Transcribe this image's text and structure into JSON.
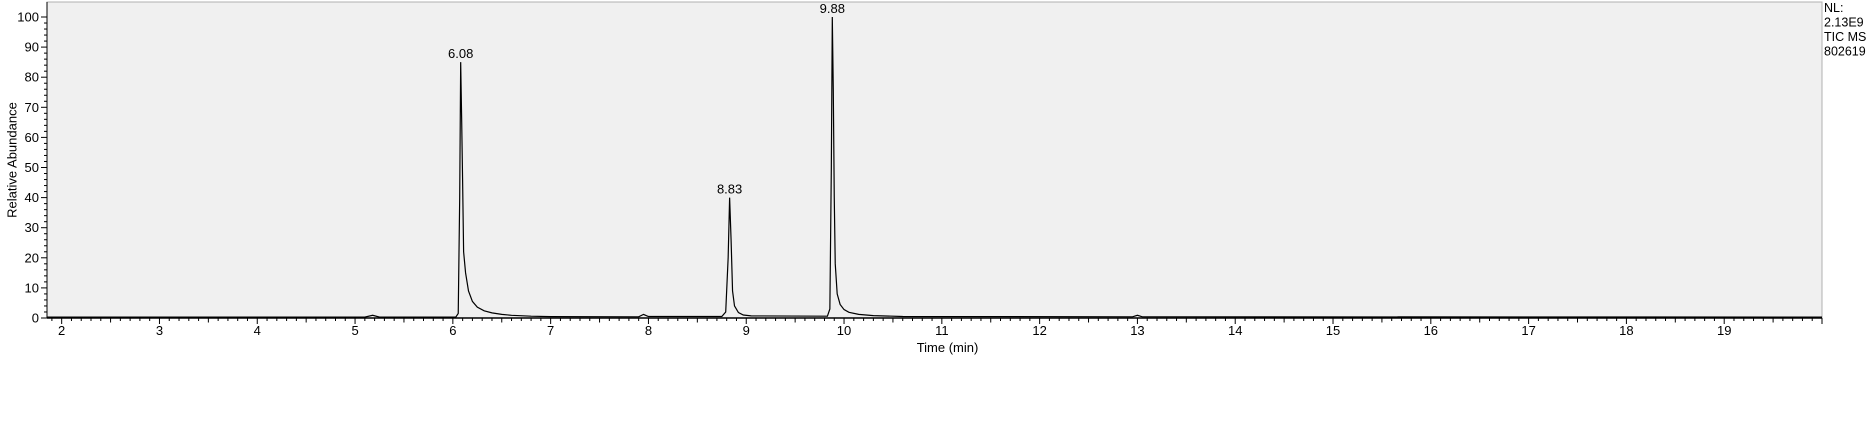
{
  "chart_data": {
    "type": "line",
    "title": "",
    "xlabel": "Time (min)",
    "ylabel": "Relative Abundance",
    "xlim": [
      1.85,
      20.0
    ],
    "ylim": [
      0,
      100
    ],
    "x_ticks": [
      2,
      3,
      4,
      5,
      6,
      7,
      8,
      9,
      10,
      11,
      12,
      13,
      14,
      15,
      16,
      17,
      18,
      19
    ],
    "y_ticks": [
      0,
      10,
      20,
      30,
      40,
      50,
      60,
      70,
      80,
      90,
      100
    ],
    "grid": false,
    "plot_background": "#f0f0f0",
    "line_color": "#000000",
    "info_lines": [
      "NL:",
      "2.13E9",
      "TIC  MS",
      "802619"
    ],
    "peak_labels": [
      {
        "x": 6.08,
        "y": 85,
        "text": "6.08"
      },
      {
        "x": 8.83,
        "y": 40,
        "text": "8.83"
      },
      {
        "x": 9.88,
        "y": 100,
        "text": "9.88"
      }
    ],
    "series": [
      {
        "values": [
          [
            1.85,
            0.3
          ],
          [
            5.1,
            0.3
          ],
          [
            5.18,
            0.9
          ],
          [
            5.25,
            0.3
          ],
          [
            6.03,
            0.3
          ],
          [
            6.055,
            1.5
          ],
          [
            6.07,
            40
          ],
          [
            6.08,
            85
          ],
          [
            6.09,
            66
          ],
          [
            6.1,
            45
          ],
          [
            6.11,
            22
          ],
          [
            6.13,
            15
          ],
          [
            6.16,
            9
          ],
          [
            6.2,
            5.5
          ],
          [
            6.25,
            3.6
          ],
          [
            6.32,
            2.4
          ],
          [
            6.4,
            1.7
          ],
          [
            6.5,
            1.2
          ],
          [
            6.6,
            0.9
          ],
          [
            6.8,
            0.6
          ],
          [
            7.0,
            0.45
          ],
          [
            7.9,
            0.4
          ],
          [
            7.95,
            1.2
          ],
          [
            8.0,
            0.5
          ],
          [
            8.75,
            0.5
          ],
          [
            8.79,
            2
          ],
          [
            8.815,
            20
          ],
          [
            8.83,
            40
          ],
          [
            8.845,
            26
          ],
          [
            8.86,
            9
          ],
          [
            8.88,
            4
          ],
          [
            8.92,
            1.8
          ],
          [
            8.97,
            1.0
          ],
          [
            9.05,
            0.7
          ],
          [
            9.83,
            0.6
          ],
          [
            9.855,
            3
          ],
          [
            9.87,
            50
          ],
          [
            9.88,
            100
          ],
          [
            9.89,
            76
          ],
          [
            9.9,
            40
          ],
          [
            9.91,
            18
          ],
          [
            9.93,
            8
          ],
          [
            9.96,
            4.5
          ],
          [
            10.0,
            2.8
          ],
          [
            10.05,
            1.9
          ],
          [
            10.15,
            1.2
          ],
          [
            10.3,
            0.8
          ],
          [
            10.6,
            0.5
          ],
          [
            12.95,
            0.4
          ],
          [
            13.0,
            0.9
          ],
          [
            13.05,
            0.4
          ],
          [
            20.0,
            0.3
          ]
        ]
      }
    ]
  }
}
